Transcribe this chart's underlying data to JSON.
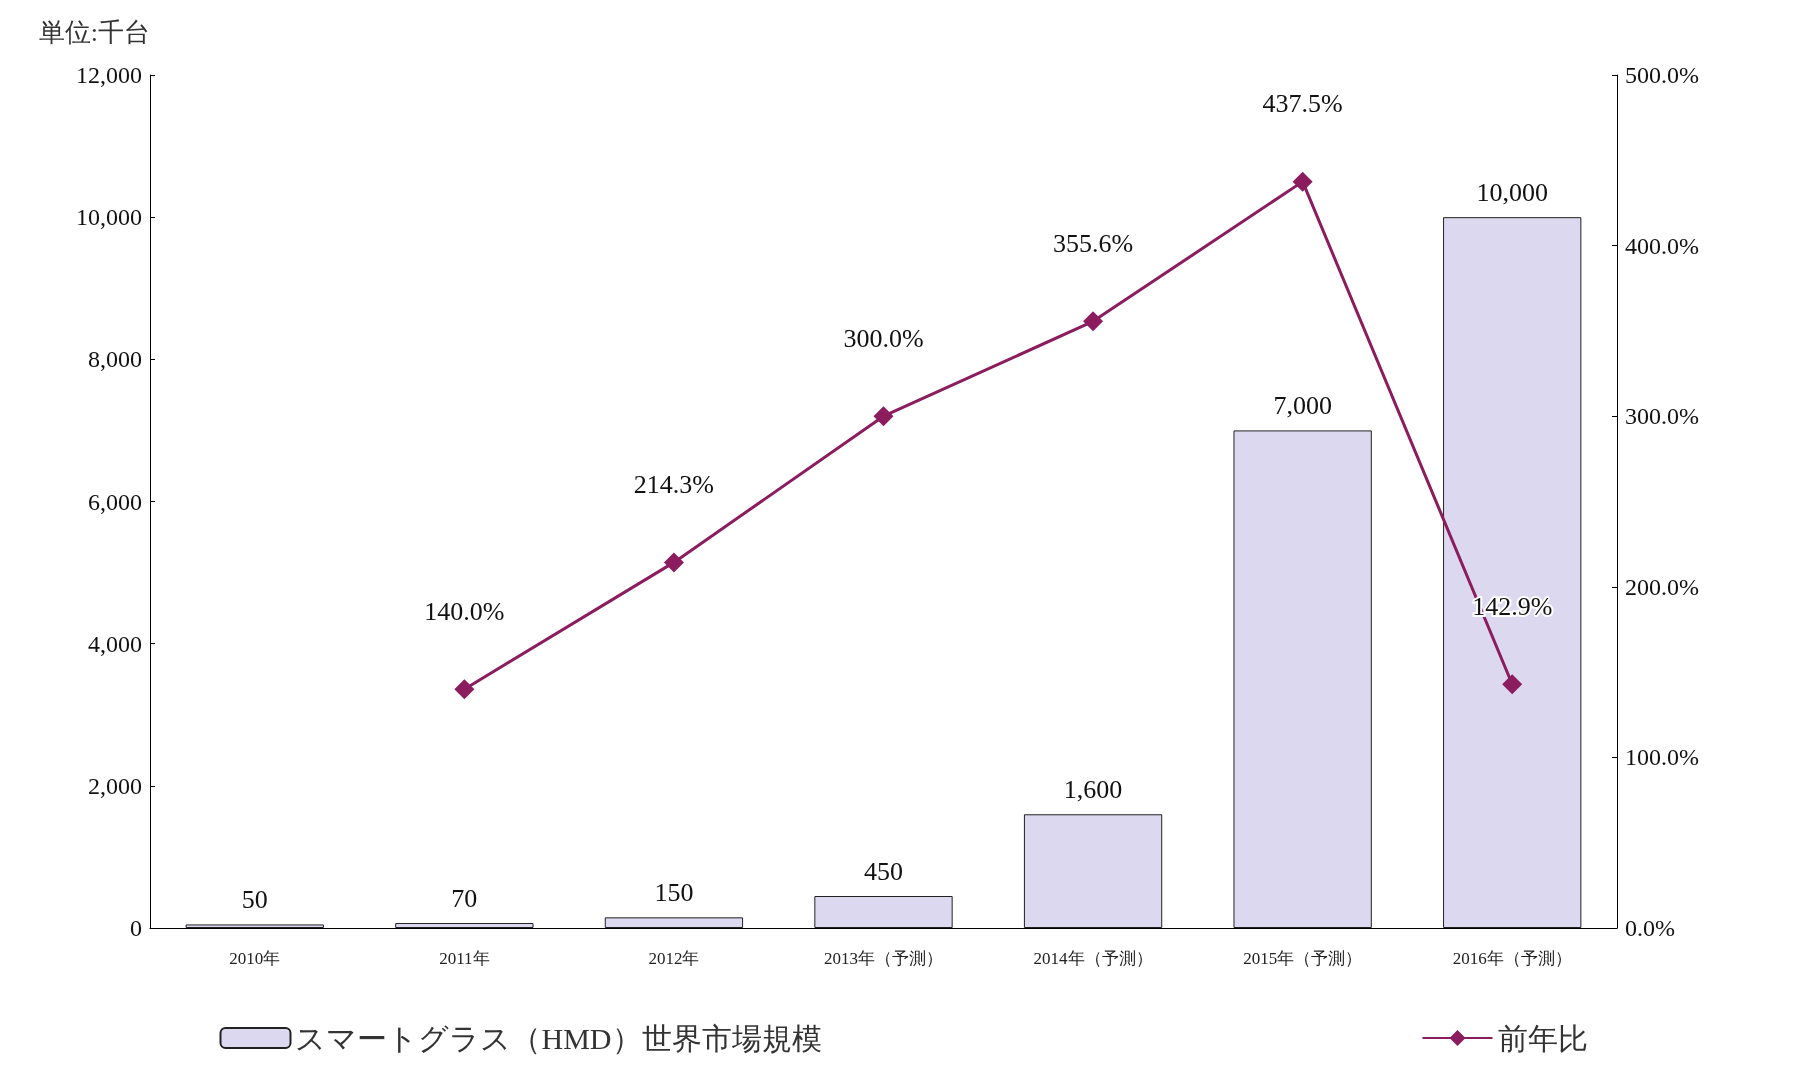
{
  "chart_data": {
    "type": "bar",
    "ylabel": "単位:千台",
    "categories": [
      "2010年",
      "2011年",
      "2012年",
      "2013年（予測）",
      "2014年（予測）",
      "2015年（予測）",
      "2016年（予測）"
    ],
    "series": [
      {
        "name": "スマートグラス（HMD）世界市場規模",
        "color": "#dcd8f0",
        "values": [
          50,
          70,
          150,
          450,
          1600,
          7000,
          10000
        ],
        "value_labels": [
          "50",
          "70",
          "150",
          "450",
          "1,600",
          "7,000",
          "10,000"
        ]
      },
      {
        "name": "前年比",
        "type": "line",
        "axis": "y2",
        "color": "#8b1c5e",
        "marker": "diamond",
        "values": [
          null,
          140.0,
          214.3,
          300.0,
          355.6,
          437.5,
          142.9
        ],
        "value_labels": [
          null,
          "140.0%",
          "214.3%",
          "300.0%",
          "355.6%",
          "437.5%",
          "142.9%"
        ]
      }
    ],
    "ylim": [
      0,
      12000
    ],
    "yticks": [
      0,
      {
        "value": 2000,
        "label": "2,000"
      },
      {
        "value": 4000,
        "label": "4,000"
      },
      {
        "value": 6000,
        "label": "6,000"
      },
      {
        "value": 8000,
        "label": "8,000"
      },
      {
        "value": 10000,
        "label": "10,000"
      },
      {
        "value": 12000,
        "label": "12,000"
      }
    ],
    "y2lim": [
      0,
      500
    ],
    "y2ticks": [
      {
        "value": 0,
        "label": "0.0%"
      },
      {
        "value": 100,
        "label": "100.0%"
      },
      {
        "value": 200,
        "label": "200.0%"
      },
      {
        "value": 300,
        "label": "300.0%"
      },
      {
        "value": 400,
        "label": "400.0%"
      },
      {
        "value": 500,
        "label": "500.0%"
      }
    ],
    "legend": "bottom",
    "grid": false
  }
}
